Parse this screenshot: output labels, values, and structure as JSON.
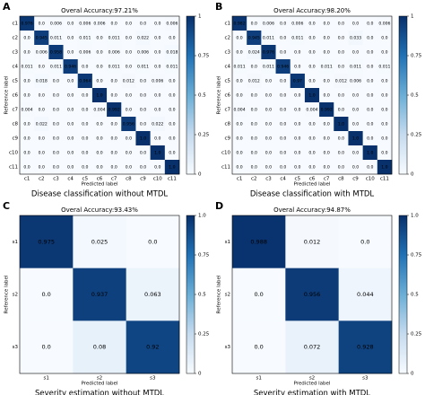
{
  "chart_data": [
    {
      "type": "heatmap",
      "panel": "A",
      "title": "Overal Accuracy:97.21%",
      "caption": "Disease classification without MTDL",
      "x_label": "Predicted label",
      "y_label": "Reference label",
      "categories": [
        "c1",
        "c2",
        "c3",
        "c4",
        "c5",
        "c6",
        "c7",
        "c8",
        "c9",
        "c10",
        "c11"
      ],
      "values": [
        [
          0.976,
          0.0,
          0.006,
          0.0,
          0.006,
          0.006,
          0.0,
          0.0,
          0.0,
          0.0,
          0.006
        ],
        [
          0.0,
          0.945,
          0.011,
          0.0,
          0.011,
          0.0,
          0.011,
          0.0,
          0.022,
          0.0,
          0.0
        ],
        [
          0.0,
          0.006,
          0.958,
          0.0,
          0.006,
          0.0,
          0.006,
          0.0,
          0.006,
          0.0,
          0.018
        ],
        [
          0.011,
          0.0,
          0.011,
          0.946,
          0.0,
          0.0,
          0.011,
          0.0,
          0.011,
          0.0,
          0.011
        ],
        [
          0.0,
          0.018,
          0.0,
          0.0,
          0.964,
          0.0,
          0.0,
          0.012,
          0.0,
          0.006,
          0.0
        ],
        [
          0.0,
          0.0,
          0.0,
          0.0,
          0.0,
          1.0,
          0.0,
          0.0,
          0.0,
          0.0,
          0.0
        ],
        [
          0.004,
          0.0,
          0.0,
          0.0,
          0.0,
          0.004,
          0.992,
          0.0,
          0.0,
          0.0,
          0.0
        ],
        [
          0.0,
          0.022,
          0.0,
          0.0,
          0.0,
          0.0,
          0.0,
          0.956,
          0.0,
          0.022,
          0.0
        ],
        [
          0.0,
          0.0,
          0.0,
          0.0,
          0.0,
          0.0,
          0.0,
          0.0,
          1.0,
          0.0,
          0.0
        ],
        [
          0.0,
          0.0,
          0.0,
          0.0,
          0.0,
          0.0,
          0.0,
          0.0,
          0.0,
          1.0,
          0.0
        ],
        [
          0.0,
          0.0,
          0.0,
          0.0,
          0.0,
          0.0,
          0.0,
          0.0,
          0.0,
          0.0,
          1.0
        ]
      ],
      "value_labels": [
        [
          "0.976",
          "0.0",
          "0.006",
          "0.0",
          "0.006",
          "0.006",
          "0.0",
          "0.0",
          "0.0",
          "0.0",
          "0.006"
        ],
        [
          "0.0",
          "0.945",
          "0.011",
          "0.0",
          "0.011",
          "0.0",
          "0.011",
          "0.0",
          "0.022",
          "0.0",
          "0.0"
        ],
        [
          "0.0",
          "0.006",
          "0.958",
          "0.0",
          "0.006",
          "0.0",
          "0.006",
          "0.0",
          "0.006",
          "0.0",
          "0.018"
        ],
        [
          "0.011",
          "0.0",
          "0.011",
          "0.946",
          "0.0",
          "0.0",
          "0.011",
          "0.0",
          "0.011",
          "0.0",
          "0.011"
        ],
        [
          "0.0",
          "0.018",
          "0.0",
          "0.0",
          "0.964",
          "0.0",
          "0.0",
          "0.012",
          "0.0",
          "0.006",
          "0.0"
        ],
        [
          "0.0",
          "0.0",
          "0.0",
          "0.0",
          "0.0",
          "1.0",
          "0.0",
          "0.0",
          "0.0",
          "0.0",
          "0.0"
        ],
        [
          "0.004",
          "0.0",
          "0.0",
          "0.0",
          "0.0",
          "0.004",
          "0.992",
          "0.0",
          "0.0",
          "0.0",
          "0.0"
        ],
        [
          "0.0",
          "0.022",
          "0.0",
          "0.0",
          "0.0",
          "0.0",
          "0.0",
          "0.956",
          "0.0",
          "0.022",
          "0.0"
        ],
        [
          "0.0",
          "0.0",
          "0.0",
          "0.0",
          "0.0",
          "0.0",
          "0.0",
          "0.0",
          "1.0",
          "0.0",
          "0.0"
        ],
        [
          "0.0",
          "0.0",
          "0.0",
          "0.0",
          "0.0",
          "0.0",
          "0.0",
          "0.0",
          "0.0",
          "1.0",
          "0.0"
        ],
        [
          "0.0",
          "0.0",
          "0.0",
          "0.0",
          "0.0",
          "0.0",
          "0.0",
          "0.0",
          "0.0",
          "0.0",
          "1.0"
        ]
      ],
      "clim": [
        0,
        1
      ],
      "cticks": [
        0,
        0.25,
        0.5,
        0.75,
        1
      ],
      "colormap": [
        "#f7fbff",
        "#c6dbef",
        "#6baed6",
        "#2171b5",
        "#08306b"
      ]
    },
    {
      "type": "heatmap",
      "panel": "B",
      "title": "Overal Accuracy:98.20%",
      "caption": "Disease classification with MTDL",
      "x_label": "Predicted label",
      "y_label": "Reference label",
      "categories": [
        "c1",
        "c2",
        "c3",
        "c4",
        "c5",
        "c6",
        "c7",
        "c8",
        "c9",
        "c10",
        "c11"
      ],
      "values": [
        [
          0.982,
          0.0,
          0.006,
          0.0,
          0.006,
          0.0,
          0.0,
          0.0,
          0.0,
          0.0,
          0.006
        ],
        [
          0.0,
          0.945,
          0.011,
          0.0,
          0.011,
          0.0,
          0.0,
          0.0,
          0.033,
          0.0,
          0.0
        ],
        [
          0.0,
          0.024,
          0.976,
          0.0,
          0.0,
          0.0,
          0.0,
          0.0,
          0.0,
          0.0,
          0.0
        ],
        [
          0.011,
          0.0,
          0.011,
          0.946,
          0.0,
          0.0,
          0.011,
          0.0,
          0.011,
          0.0,
          0.011
        ],
        [
          0.0,
          0.012,
          0.0,
          0.0,
          0.97,
          0.0,
          0.0,
          0.012,
          0.006,
          0.0,
          0.0
        ],
        [
          0.0,
          0.0,
          0.0,
          0.0,
          0.0,
          1.0,
          0.0,
          0.0,
          0.0,
          0.0,
          0.0
        ],
        [
          0.004,
          0.0,
          0.0,
          0.0,
          0.0,
          0.004,
          0.992,
          0.0,
          0.0,
          0.0,
          0.0
        ],
        [
          0.0,
          0.0,
          0.0,
          0.0,
          0.0,
          0.0,
          0.0,
          1.0,
          0.0,
          0.0,
          0.0
        ],
        [
          0.0,
          0.0,
          0.0,
          0.0,
          0.0,
          0.0,
          0.0,
          0.0,
          1.0,
          0.0,
          0.0
        ],
        [
          0.0,
          0.0,
          0.0,
          0.0,
          0.0,
          0.0,
          0.0,
          0.0,
          0.0,
          1.0,
          0.0
        ],
        [
          0.0,
          0.0,
          0.0,
          0.0,
          0.0,
          0.0,
          0.0,
          0.0,
          0.0,
          0.0,
          1.0
        ]
      ],
      "value_labels": [
        [
          "0.982",
          "0.0",
          "0.006",
          "0.0",
          "0.006",
          "0.0",
          "0.0",
          "0.0",
          "0.0",
          "0.0",
          "0.006"
        ],
        [
          "0.0",
          "0.945",
          "0.011",
          "0.0",
          "0.011",
          "0.0",
          "0.0",
          "0.0",
          "0.033",
          "0.0",
          "0.0"
        ],
        [
          "0.0",
          "0.024",
          "0.976",
          "0.0",
          "0.0",
          "0.0",
          "0.0",
          "0.0",
          "0.0",
          "0.0",
          "0.0"
        ],
        [
          "0.011",
          "0.0",
          "0.011",
          "0.946",
          "0.0",
          "0.0",
          "0.011",
          "0.0",
          "0.011",
          "0.0",
          "0.011"
        ],
        [
          "0.0",
          "0.012",
          "0.0",
          "0.0",
          "0.97",
          "0.0",
          "0.0",
          "0.012",
          "0.006",
          "0.0",
          "0.0"
        ],
        [
          "0.0",
          "0.0",
          "0.0",
          "0.0",
          "0.0",
          "1.0",
          "0.0",
          "0.0",
          "0.0",
          "0.0",
          "0.0"
        ],
        [
          "0.004",
          "0.0",
          "0.0",
          "0.0",
          "0.0",
          "0.004",
          "0.992",
          "0.0",
          "0.0",
          "0.0",
          "0.0"
        ],
        [
          "0.0",
          "0.0",
          "0.0",
          "0.0",
          "0.0",
          "0.0",
          "0.0",
          "1.0",
          "0.0",
          "0.0",
          "0.0"
        ],
        [
          "0.0",
          "0.0",
          "0.0",
          "0.0",
          "0.0",
          "0.0",
          "0.0",
          "0.0",
          "1.0",
          "0.0",
          "0.0"
        ],
        [
          "0.0",
          "0.0",
          "0.0",
          "0.0",
          "0.0",
          "0.0",
          "0.0",
          "0.0",
          "0.0",
          "1.0",
          "0.0"
        ],
        [
          "0.0",
          "0.0",
          "0.0",
          "0.0",
          "0.0",
          "0.0",
          "0.0",
          "0.0",
          "0.0",
          "0.0",
          "1.0"
        ]
      ],
      "clim": [
        0,
        1
      ],
      "cticks": [
        0,
        0.25,
        0.5,
        0.75,
        1
      ],
      "colormap": [
        "#f7fbff",
        "#c6dbef",
        "#6baed6",
        "#2171b5",
        "#08306b"
      ]
    },
    {
      "type": "heatmap",
      "panel": "C",
      "title": "Overal Accuracy:93.43%",
      "caption": "Severity estimation without MTDL",
      "x_label": "Predicted label",
      "y_label": "Reference label",
      "categories": [
        "s1",
        "s2",
        "s3"
      ],
      "values": [
        [
          0.975,
          0.025,
          0.0
        ],
        [
          0.0,
          0.937,
          0.063
        ],
        [
          0.0,
          0.08,
          0.92
        ]
      ],
      "value_labels": [
        [
          "0.975",
          "0.025",
          "0.0"
        ],
        [
          "0.0",
          "0.937",
          "0.063"
        ],
        [
          "0.0",
          "0.08",
          "0.92"
        ]
      ],
      "clim": [
        0,
        1
      ],
      "cticks": [
        0,
        0.25,
        0.5,
        0.75,
        {
          "value": 1,
          "label": "1.0"
        }
      ],
      "colormap": [
        "#f7fbff",
        "#c6dbef",
        "#6baed6",
        "#2171b5",
        "#08306b"
      ]
    },
    {
      "type": "heatmap",
      "panel": "D",
      "title": "Overal Accuracy:94.87%",
      "caption": "Severity estimation with MTDL",
      "x_label": "Predicted label",
      "y_label": "Reference label",
      "categories": [
        "s1",
        "s2",
        "s3"
      ],
      "values": [
        [
          0.988,
          0.012,
          0.0
        ],
        [
          0.0,
          0.956,
          0.044
        ],
        [
          0.0,
          0.072,
          0.928
        ]
      ],
      "value_labels": [
        [
          "0.988",
          "0.012",
          "0.0"
        ],
        [
          "0.0",
          "0.956",
          "0.044"
        ],
        [
          "0.0",
          "0.072",
          "0.928"
        ]
      ],
      "clim": [
        0,
        1
      ],
      "cticks": [
        0,
        0.25,
        0.5,
        0.75,
        {
          "value": 1,
          "label": "1.0"
        }
      ],
      "colormap": [
        "#f7fbff",
        "#c6dbef",
        "#6baed6",
        "#2171b5",
        "#08306b"
      ]
    }
  ]
}
